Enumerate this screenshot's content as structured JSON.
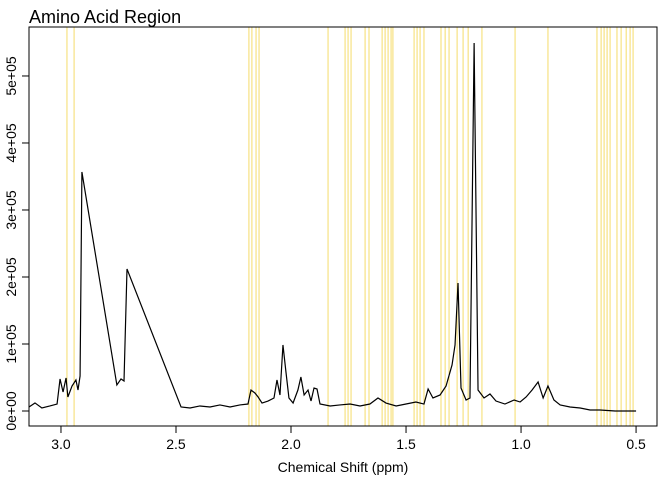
{
  "chart_data": {
    "type": "line",
    "title": "Amino Acid Region",
    "xlabel": "Chemical Shift (ppm)",
    "x": [
      3.139,
      3.113,
      3.083,
      3.048,
      3.017,
      3.004,
      2.991,
      2.978,
      2.97,
      2.952,
      2.935,
      2.926,
      2.917,
      2.909,
      2.757,
      2.739,
      2.726,
      2.713,
      2.478,
      2.439,
      2.396,
      2.352,
      2.309,
      2.265,
      2.222,
      2.187,
      2.174,
      2.157,
      2.143,
      2.126,
      2.1,
      2.074,
      2.061,
      2.048,
      2.035,
      2.022,
      2.009,
      1.991,
      1.97,
      1.957,
      1.943,
      1.926,
      1.913,
      1.9,
      1.887,
      1.874,
      1.83,
      1.787,
      1.743,
      1.7,
      1.657,
      1.622,
      1.587,
      1.543,
      1.5,
      1.457,
      1.422,
      1.404,
      1.383,
      1.352,
      1.326,
      1.3,
      1.287,
      1.274,
      1.261,
      1.239,
      1.222,
      1.204,
      1.187,
      1.161,
      1.135,
      1.109,
      1.07,
      1.03,
      1.004,
      0.978,
      0.952,
      0.926,
      0.904,
      0.883,
      0.857,
      0.83,
      0.787,
      0.743,
      0.7,
      0.657,
      0.591,
      0.5
    ],
    "series": [
      {
        "color": "#000000",
        "values": [
          6000,
          12000,
          4500,
          7500,
          10400,
          47800,
          28400,
          49300,
          20900,
          37300,
          46300,
          31300,
          52200,
          356700,
          38800,
          47800,
          44800,
          211900,
          6000,
          4500,
          7500,
          6000,
          9000,
          6000,
          9000,
          10400,
          31300,
          26900,
          20900,
          11900,
          14900,
          19400,
          46300,
          23900,
          98500,
          58200,
          19400,
          11900,
          31300,
          50700,
          23900,
          31300,
          14900,
          34300,
          32800,
          10400,
          7500,
          9000,
          10400,
          7500,
          10400,
          19400,
          11900,
          7500,
          10400,
          13400,
          10400,
          32800,
          19400,
          23900,
          37300,
          68700,
          98500,
          191000,
          34300,
          16400,
          19400,
          549300,
          31300,
          19400,
          25400,
          14900,
          10400,
          16400,
          13400,
          20900,
          31300,
          43300,
          19400,
          37300,
          16400,
          9000,
          6000,
          4500,
          1500,
          1500,
          0,
          0
        ]
      }
    ],
    "vlines": [
      2.974,
      2.943,
      2.183,
      2.17,
      2.152,
      2.139,
      1.839,
      1.765,
      1.752,
      1.739,
      1.678,
      1.661,
      1.604,
      1.591,
      1.578,
      1.565,
      1.557,
      1.465,
      1.452,
      1.439,
      1.422,
      1.348,
      1.33,
      1.313,
      1.278,
      1.252,
      1.23,
      1.17,
      1.026,
      0.883,
      0.67,
      0.652,
      0.639,
      0.626,
      0.613,
      0.583,
      0.565,
      0.543,
      0.526,
      0.513
    ],
    "vline_color": "#f5dc6a",
    "xlim": [
      3.139,
      0.409
    ],
    "xticks": [
      {
        "value": 3,
        "label": "3.0"
      },
      2.5,
      {
        "value": 2,
        "label": "2.0"
      },
      1.5,
      {
        "value": 1,
        "label": "1.0"
      },
      0.5
    ],
    "ylim": [
      -22400,
      573100
    ],
    "yticks": [
      {
        "value": 0,
        "label": "0e+00"
      },
      {
        "value": 100000,
        "label": "1e+05"
      },
      {
        "value": 200000,
        "label": "2e+05"
      },
      {
        "value": 300000,
        "label": "3e+05"
      },
      {
        "value": 400000,
        "label": "4e+05"
      },
      {
        "value": 500000,
        "label": "5e+05"
      }
    ]
  }
}
